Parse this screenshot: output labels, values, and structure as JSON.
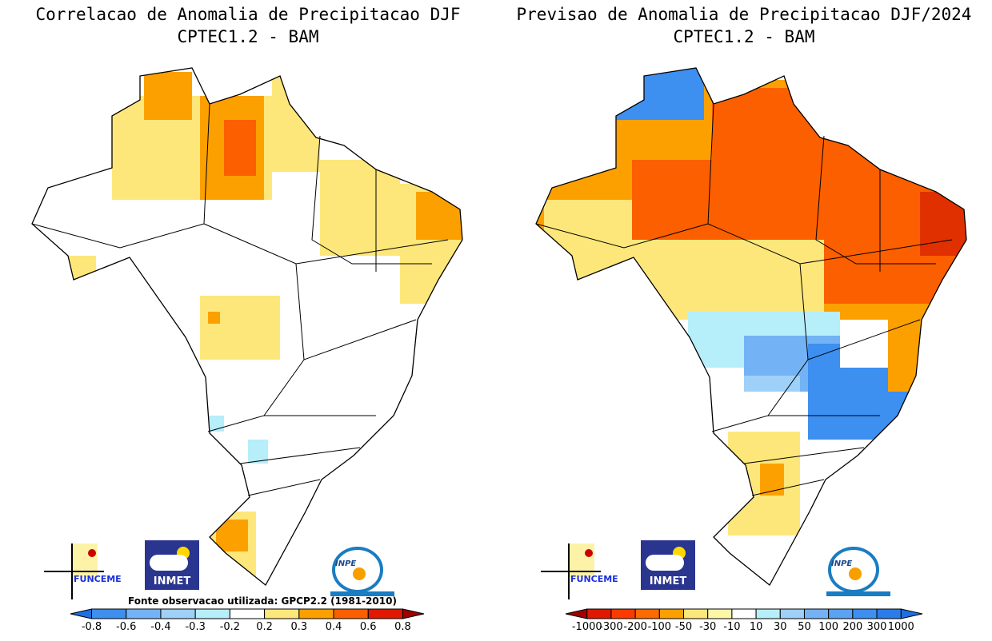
{
  "left_panel": {
    "title": "Correlacao de Anomalia de Precipitacao DJF",
    "subtitle": "CPTEC1.2 - BAM",
    "source_note": "Fonte observacao utilizada: GPCP2.2 (1981-2010)",
    "colorbar": {
      "labels": [
        "-0.8",
        "-0.6",
        "-0.4",
        "-0.3",
        "-0.2",
        "0.2",
        "0.3",
        "0.4",
        "0.6",
        "0.8"
      ],
      "colors": [
        "#1f6fe0",
        "#3d8ff0",
        "#73b3f5",
        "#9fd0f7",
        "#b6eefa",
        "#ffffff",
        "#fde77a",
        "#fca000",
        "#fc5f00",
        "#e01800",
        "#a00000"
      ]
    }
  },
  "right_panel": {
    "title": "Previsao de Anomalia de Precipitacao DJF/2024",
    "subtitle": "CPTEC1.2 - BAM",
    "colorbar": {
      "labels": [
        "-1000",
        "-300",
        "-200",
        "-100",
        "-50",
        "-30",
        "-10",
        "10",
        "30",
        "50",
        "100",
        "200",
        "300",
        "1000"
      ],
      "colors": [
        "#a00000",
        "#e01800",
        "#fc3a00",
        "#fc6a00",
        "#fca000",
        "#fde77a",
        "#fff7a8",
        "#ffffff",
        "#b6eefa",
        "#9fd0f7",
        "#73b3f5",
        "#5aa2f2",
        "#3d8ff0",
        "#2a7ce8",
        "#1f6fe0"
      ]
    }
  },
  "logos": {
    "funceme": "FUNCEME",
    "inmet": "INMET",
    "inpe": "INPE"
  }
}
